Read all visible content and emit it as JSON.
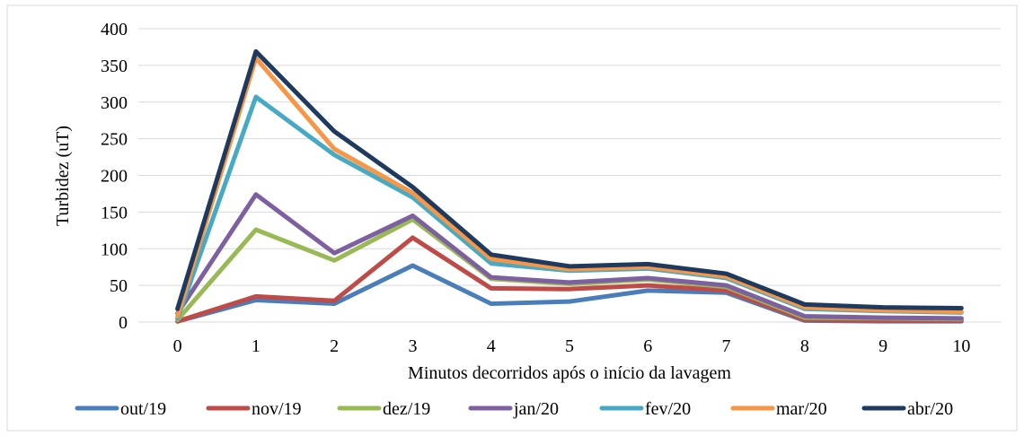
{
  "chart_data": {
    "type": "line",
    "title": "",
    "xlabel": "Minutos decorridos após o início da lavagem",
    "ylabel": "Turbidez (uT)",
    "x": [
      0,
      1,
      2,
      3,
      4,
      5,
      6,
      7,
      8,
      9,
      10
    ],
    "ylim": [
      0,
      400
    ],
    "yticks": [
      0,
      50,
      100,
      150,
      200,
      250,
      300,
      350,
      400
    ],
    "grid": true,
    "legend_position": "bottom",
    "series": [
      {
        "name": "out/19",
        "color": "#4a7ebb",
        "values": [
          1,
          30,
          25,
          77,
          25,
          28,
          43,
          40,
          2,
          1,
          1
        ]
      },
      {
        "name": "nov/19",
        "color": "#be4b48",
        "values": [
          1,
          35,
          29,
          115,
          46,
          45,
          50,
          43,
          3,
          2,
          2
        ]
      },
      {
        "name": "dez/19",
        "color": "#98b954",
        "values": [
          3,
          126,
          84,
          140,
          59,
          52,
          58,
          48,
          6,
          5,
          4
        ]
      },
      {
        "name": "jan/20",
        "color": "#7d60a0",
        "values": [
          12,
          174,
          94,
          145,
          61,
          54,
          60,
          50,
          8,
          6,
          5
        ]
      },
      {
        "name": "fev/20",
        "color": "#46aac5",
        "values": [
          5,
          307,
          228,
          170,
          80,
          70,
          73,
          60,
          18,
          15,
          13
        ]
      },
      {
        "name": "mar/20",
        "color": "#f79646",
        "values": [
          8,
          360,
          236,
          176,
          86,
          72,
          75,
          62,
          20,
          16,
          14
        ]
      },
      {
        "name": "abr/20",
        "color": "#1f3a5f",
        "values": [
          18,
          369,
          260,
          184,
          92,
          76,
          79,
          66,
          24,
          20,
          19
        ]
      }
    ]
  }
}
